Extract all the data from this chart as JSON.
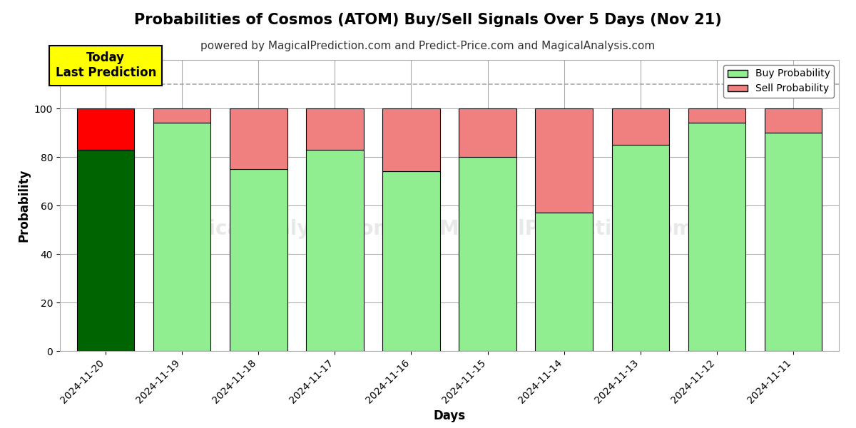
{
  "title": "Probabilities of Cosmos (ATOM) Buy/Sell Signals Over 5 Days (Nov 21)",
  "subtitle": "powered by MagicalPrediction.com and Predict-Price.com and MagicalAnalysis.com",
  "xlabel": "Days",
  "ylabel": "Probability",
  "categories": [
    "2024-11-20",
    "2024-11-19",
    "2024-11-18",
    "2024-11-17",
    "2024-11-16",
    "2024-11-15",
    "2024-11-14",
    "2024-11-13",
    "2024-11-12",
    "2024-11-11"
  ],
  "buy_values": [
    83,
    94,
    75,
    83,
    74,
    80,
    57,
    85,
    94,
    90
  ],
  "sell_values": [
    17,
    6,
    25,
    17,
    26,
    20,
    43,
    15,
    6,
    10
  ],
  "today_buy_color": "#006400",
  "today_sell_color": "#ff0000",
  "buy_color": "#90EE90",
  "sell_color": "#F08080",
  "bar_edge_color": "#000000",
  "ylim": [
    0,
    120
  ],
  "yticks": [
    0,
    20,
    40,
    60,
    80,
    100
  ],
  "dashed_line_y": 110,
  "annotation_text": "Today\nLast Prediction",
  "annotation_bg": "#ffff00",
  "background_color": "#ffffff",
  "grid_color": "#aaaaaa",
  "title_fontsize": 15,
  "subtitle_fontsize": 11,
  "label_fontsize": 12,
  "tick_fontsize": 10
}
